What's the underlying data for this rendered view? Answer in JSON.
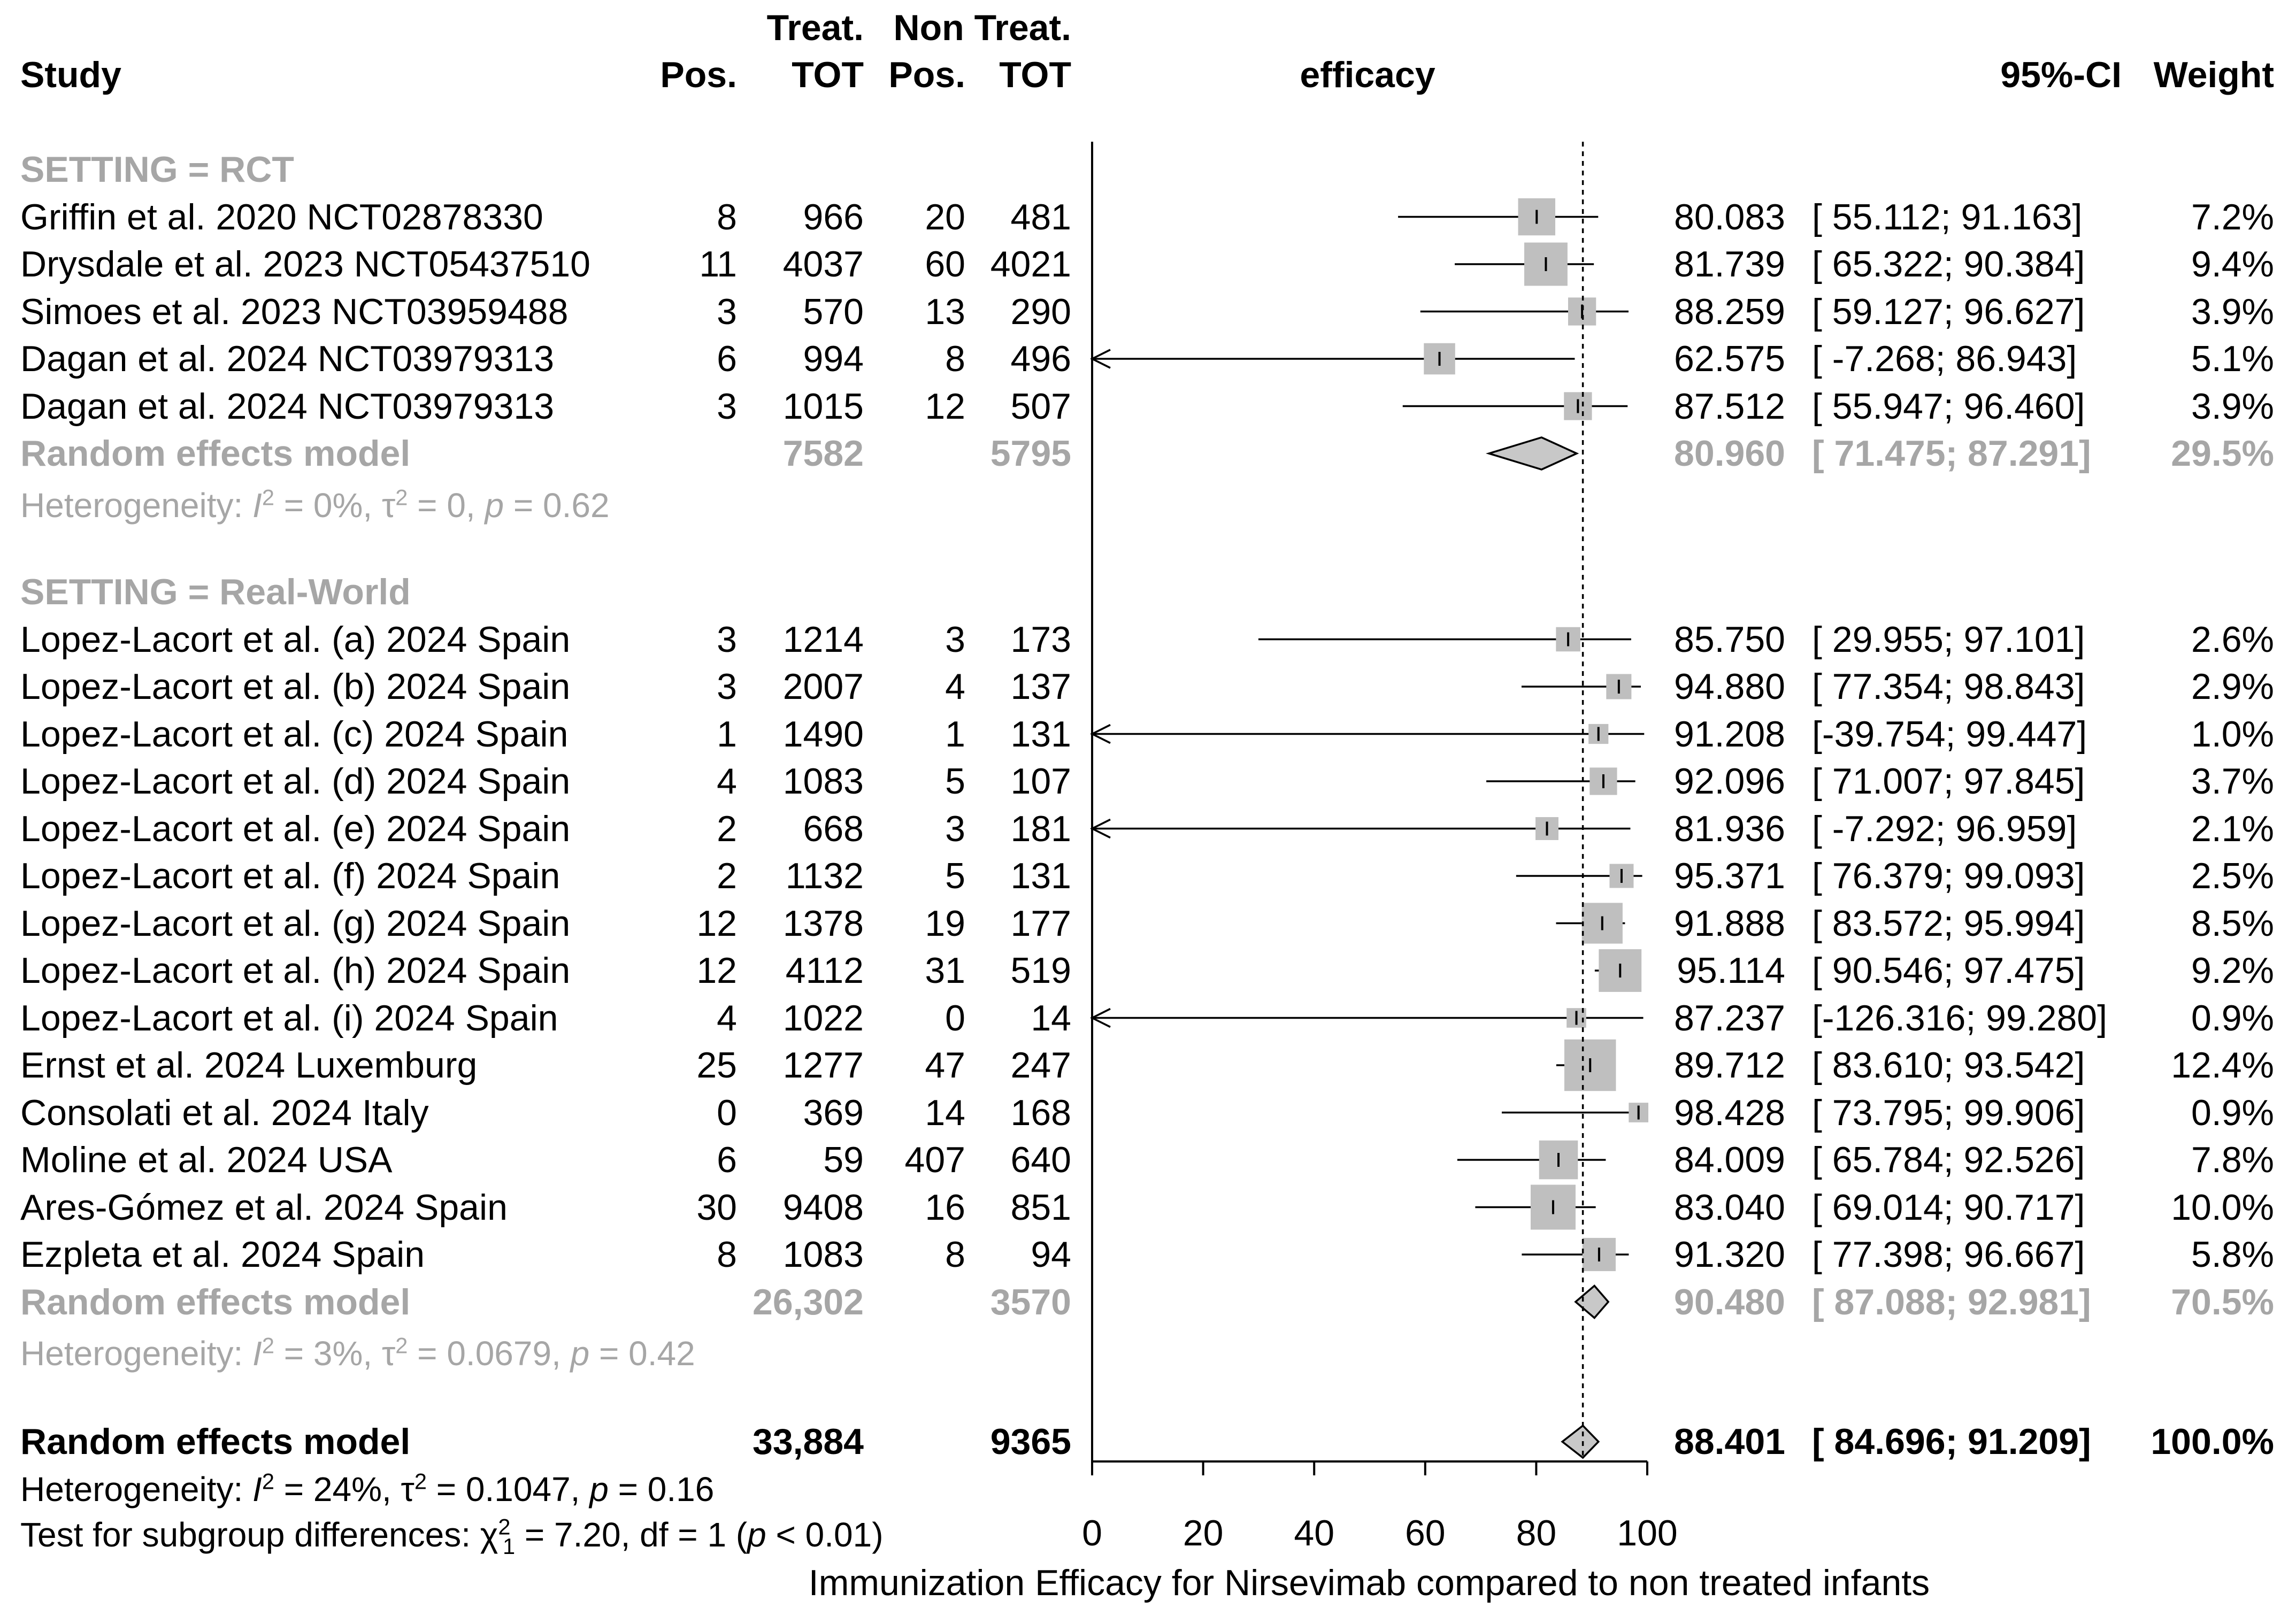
{
  "header": {
    "study": "Study",
    "treat_group": "Treat.",
    "non_treat_group": "Non Treat.",
    "pos": "Pos.",
    "tot": "TOT",
    "efficacy": "efficacy",
    "ci": "95%-CI",
    "weight": "Weight"
  },
  "groups": [
    {
      "label": "SETTING = RCT",
      "studies": [
        {
          "name": "Griffin et al. 2020 NCT02878330",
          "tpos": "8",
          "ttot": "966",
          "npos": "20",
          "ntot": "481",
          "est": 80.083,
          "lo": 55.112,
          "hi": 91.163,
          "est_txt": "80.083",
          "ci_txt": "[ 55.112; 91.163]",
          "weight": "7.2%",
          "w": 7.2
        },
        {
          "name": "Drysdale et al. 2023 NCT05437510",
          "tpos": "11",
          "ttot": "4037",
          "npos": "60",
          "ntot": "4021",
          "est": 81.739,
          "lo": 65.322,
          "hi": 90.384,
          "est_txt": "81.739",
          "ci_txt": "[ 65.322; 90.384]",
          "weight": "9.4%",
          "w": 9.4
        },
        {
          "name": "Simoes et al. 2023 NCT03959488",
          "tpos": "3",
          "ttot": "570",
          "npos": "13",
          "ntot": "290",
          "est": 88.259,
          "lo": 59.127,
          "hi": 96.627,
          "est_txt": "88.259",
          "ci_txt": "[ 59.127; 96.627]",
          "weight": "3.9%",
          "w": 3.9
        },
        {
          "name": "Dagan et al. 2024 NCT03979313",
          "tpos": "6",
          "ttot": "994",
          "npos": "8",
          "ntot": "496",
          "est": 62.575,
          "lo": -7.268,
          "hi": 86.943,
          "est_txt": "62.575",
          "ci_txt": "[ -7.268; 86.943]",
          "weight": "5.1%",
          "w": 5.1
        },
        {
          "name": "Dagan et al. 2024 NCT03979313",
          "tpos": "3",
          "ttot": "1015",
          "npos": "12",
          "ntot": "507",
          "est": 87.512,
          "lo": 55.947,
          "hi": 96.46,
          "est_txt": "87.512",
          "ci_txt": "[ 55.947; 96.460]",
          "weight": "3.9%",
          "w": 3.9
        }
      ],
      "summary": {
        "label": "Random effects model",
        "ttot": "7582",
        "ntot": "5795",
        "est": 80.96,
        "lo": 71.475,
        "hi": 87.291,
        "est_txt": "80.960",
        "ci_txt": "[ 71.475; 87.291]",
        "weight": "29.5%"
      },
      "het": {
        "prefix": "Heterogeneity: ",
        "i2": "I",
        "eq1": " = 0%, ",
        "tau": "τ",
        "eq2": " = 0, ",
        "p": "p",
        "eq3": " = 0.62"
      }
    },
    {
      "label": "SETTING = Real-World",
      "studies": [
        {
          "name": "Lopez-Lacort et al. (a) 2024 Spain",
          "tpos": "3",
          "ttot": "1214",
          "npos": "3",
          "ntot": "173",
          "est": 85.75,
          "lo": 29.955,
          "hi": 97.101,
          "est_txt": "85.750",
          "ci_txt": "[ 29.955; 97.101]",
          "weight": "2.6%",
          "w": 2.6
        },
        {
          "name": "Lopez-Lacort et al. (b) 2024 Spain",
          "tpos": "3",
          "ttot": "2007",
          "npos": "4",
          "ntot": "137",
          "est": 94.88,
          "lo": 77.354,
          "hi": 98.843,
          "est_txt": "94.880",
          "ci_txt": "[ 77.354; 98.843]",
          "weight": "2.9%",
          "w": 2.9
        },
        {
          "name": "Lopez-Lacort et al. (c) 2024 Spain",
          "tpos": "1",
          "ttot": "1490",
          "npos": "1",
          "ntot": "131",
          "est": 91.208,
          "lo": -39.754,
          "hi": 99.447,
          "est_txt": "91.208",
          "ci_txt": "[-39.754; 99.447]",
          "weight": "1.0%",
          "w": 1.0
        },
        {
          "name": "Lopez-Lacort et al. (d) 2024 Spain",
          "tpos": "4",
          "ttot": "1083",
          "npos": "5",
          "ntot": "107",
          "est": 92.096,
          "lo": 71.007,
          "hi": 97.845,
          "est_txt": "92.096",
          "ci_txt": "[ 71.007; 97.845]",
          "weight": "3.7%",
          "w": 3.7
        },
        {
          "name": "Lopez-Lacort et al. (e) 2024 Spain",
          "tpos": "2",
          "ttot": "668",
          "npos": "3",
          "ntot": "181",
          "est": 81.936,
          "lo": -7.292,
          "hi": 96.959,
          "est_txt": "81.936",
          "ci_txt": "[ -7.292; 96.959]",
          "weight": "2.1%",
          "w": 2.1
        },
        {
          "name": "Lopez-Lacort et al. (f) 2024 Spain",
          "tpos": "2",
          "ttot": "1132",
          "npos": "5",
          "ntot": "131",
          "est": 95.371,
          "lo": 76.379,
          "hi": 99.093,
          "est_txt": "95.371",
          "ci_txt": "[ 76.379; 99.093]",
          "weight": "2.5%",
          "w": 2.5
        },
        {
          "name": "Lopez-Lacort et al. (g) 2024 Spain",
          "tpos": "12",
          "ttot": "1378",
          "npos": "19",
          "ntot": "177",
          "est": 91.888,
          "lo": 83.572,
          "hi": 95.994,
          "est_txt": "91.888",
          "ci_txt": "[ 83.572; 95.994]",
          "weight": "8.5%",
          "w": 8.5
        },
        {
          "name": "Lopez-Lacort et al. (h) 2024 Spain",
          "tpos": "12",
          "ttot": "4112",
          "npos": "31",
          "ntot": "519",
          "est": 95.114,
          "lo": 90.546,
          "hi": 97.475,
          "est_txt": "95.114",
          "ci_txt": "[ 90.546; 97.475]",
          "weight": "9.2%",
          "w": 9.2
        },
        {
          "name": "Lopez-Lacort et al. (i) 2024 Spain",
          "tpos": "4",
          "ttot": "1022",
          "npos": "0",
          "ntot": "14",
          "est": 87.237,
          "lo": -126.316,
          "hi": 99.28,
          "est_txt": "87.237",
          "ci_txt": "[-126.316; 99.280]",
          "weight": "0.9%",
          "w": 0.9
        },
        {
          "name": "Ernst et al. 2024 Luxemburg",
          "tpos": "25",
          "ttot": "1277",
          "npos": "47",
          "ntot": "247",
          "est": 89.712,
          "lo": 83.61,
          "hi": 93.542,
          "est_txt": "89.712",
          "ci_txt": "[ 83.610; 93.542]",
          "weight": "12.4%",
          "w": 12.4
        },
        {
          "name": "Consolati et al. 2024 Italy",
          "tpos": "0",
          "ttot": "369",
          "npos": "14",
          "ntot": "168",
          "est": 98.428,
          "lo": 73.795,
          "hi": 99.906,
          "est_txt": "98.428",
          "ci_txt": "[ 73.795; 99.906]",
          "weight": "0.9%",
          "w": 0.9
        },
        {
          "name": "Moline et al. 2024 USA",
          "tpos": "6",
          "ttot": "59",
          "npos": "407",
          "ntot": "640",
          "est": 84.009,
          "lo": 65.784,
          "hi": 92.526,
          "est_txt": "84.009",
          "ci_txt": "[ 65.784; 92.526]",
          "weight": "7.8%",
          "w": 7.8
        },
        {
          "name": "Ares-Gómez et al. 2024 Spain",
          "tpos": "30",
          "ttot": "9408",
          "npos": "16",
          "ntot": "851",
          "est": 83.04,
          "lo": 69.014,
          "hi": 90.717,
          "est_txt": "83.040",
          "ci_txt": "[ 69.014; 90.717]",
          "weight": "10.0%",
          "w": 10.0
        },
        {
          "name": "Ezpleta et al. 2024 Spain",
          "tpos": "8",
          "ttot": "1083",
          "npos": "8",
          "ntot": "94",
          "est": 91.32,
          "lo": 77.398,
          "hi": 96.667,
          "est_txt": "91.320",
          "ci_txt": "[ 77.398; 96.667]",
          "weight": "5.8%",
          "w": 5.8
        }
      ],
      "summary": {
        "label": "Random effects model",
        "ttot": "26,302",
        "ntot": "3570",
        "est": 90.48,
        "lo": 87.088,
        "hi": 92.981,
        "est_txt": "90.480",
        "ci_txt": "[ 87.088; 92.981]",
        "weight": "70.5%"
      },
      "het": {
        "prefix": "Heterogeneity: ",
        "i2": "I",
        "eq1": " = 3%, ",
        "tau": "τ",
        "eq2": " = 0.0679, ",
        "p": "p",
        "eq3": " = 0.42"
      }
    }
  ],
  "overall": {
    "label": "Random effects model",
    "ttot": "33,884",
    "ntot": "9365",
    "est": 88.401,
    "lo": 84.696,
    "hi": 91.209,
    "est_txt": "88.401",
    "ci_txt": "[ 84.696; 91.209]",
    "weight": "100.0%",
    "het": {
      "prefix": "Heterogeneity: ",
      "i2": "I",
      "eq1": " = 24%, ",
      "tau": "τ",
      "eq2": " = 0.1047, ",
      "p": "p",
      "eq3": " = 0.16"
    },
    "subgroup": {
      "prefix": "Test for subgroup differences: ",
      "chi": "χ",
      "eq": " = 7.20, df = 1 (",
      "p": "p",
      "tail": " < 0.01)"
    }
  },
  "chart_data": {
    "type": "forest",
    "xlabel": "Immunization Efficacy for Nirsevimab compared to non treated infants",
    "xlim": [
      0,
      100
    ],
    "ticks": [
      "0",
      "20",
      "40",
      "60",
      "80",
      "100"
    ],
    "reference_line": 88.401,
    "marker_color": "#bfbfbf",
    "summary_color": "#c8c8c8",
    "subgroup_text_color": "#a6a6a6"
  }
}
